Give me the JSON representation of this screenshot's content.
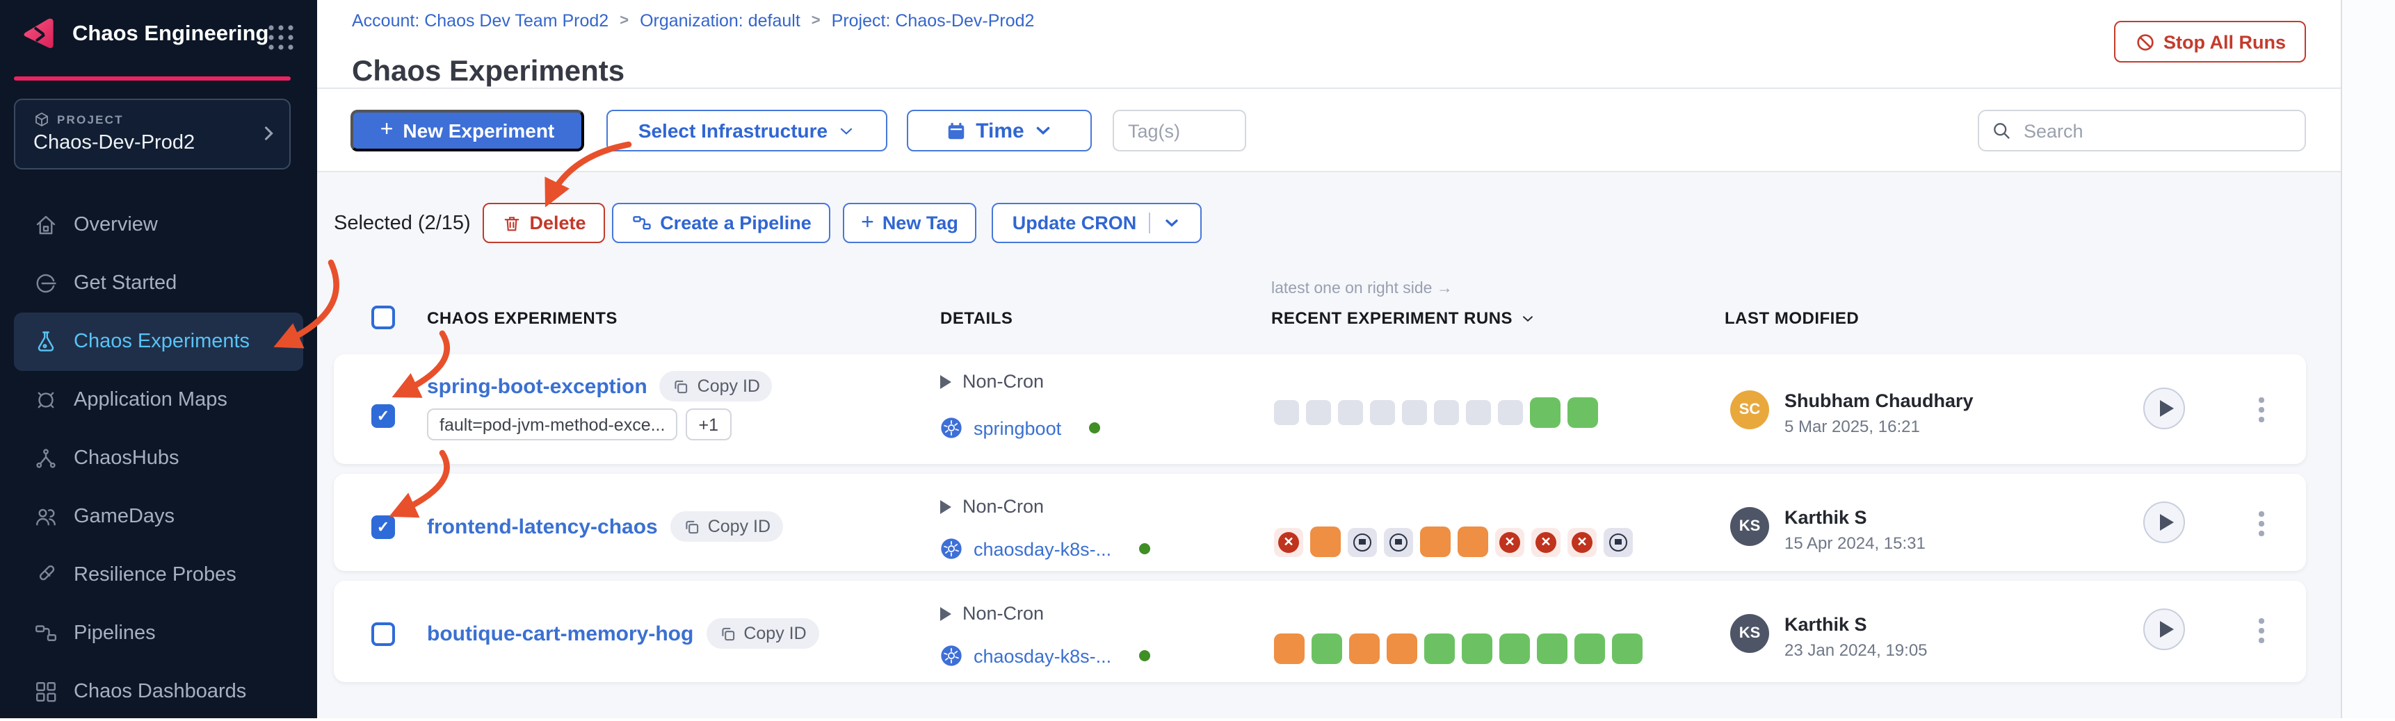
{
  "sidebar": {
    "title": "Chaos Engineering",
    "logo_icon": "chaos-logo-icon",
    "apps_icon": "app-grid-icon",
    "project": {
      "label": "PROJECT",
      "name": "Chaos-Dev-Prod2"
    },
    "items": [
      {
        "label": "Overview",
        "icon": "home-icon",
        "active": false
      },
      {
        "label": "Get Started",
        "icon": "get-started-icon",
        "active": false
      },
      {
        "label": "Chaos Experiments",
        "icon": "flask-icon",
        "active": true
      },
      {
        "label": "Application Maps",
        "icon": "target-icon",
        "active": false
      },
      {
        "label": "ChaosHubs",
        "icon": "hub-icon",
        "active": false
      },
      {
        "label": "GameDays",
        "icon": "people-icon",
        "active": false
      },
      {
        "label": "Resilience Probes",
        "icon": "probe-icon",
        "active": false
      },
      {
        "label": "Pipelines",
        "icon": "pipeline-icon",
        "active": false
      },
      {
        "label": "Chaos Dashboards",
        "icon": "dashboard-icon",
        "active": false
      }
    ]
  },
  "header": {
    "breadcrumbs": [
      "Account: Chaos Dev Team Prod2",
      "Organization: default",
      "Project: Chaos-Dev-Prod2"
    ],
    "breadcrumb_separator": ">",
    "title": "Chaos Experiments",
    "stop_all_runs": "Stop All Runs"
  },
  "toolbar": {
    "plus": "+",
    "new_experiment": "New Experiment",
    "select_infrastructure": "Select Infrastructure",
    "time": "Time",
    "tags_placeholder": "Tag(s)",
    "search_placeholder": "Search"
  },
  "selection": {
    "selected_text": "Selected (2/15)",
    "plus": "+",
    "delete": "Delete",
    "create_pipeline": "Create a Pipeline",
    "new_tag": "New Tag",
    "update_cron": "Update CRON"
  },
  "table": {
    "runs_note": "latest one on right side →",
    "col_experiments": "CHAOS EXPERIMENTS",
    "col_details": "DETAILS",
    "col_runs": "RECENT EXPERIMENT RUNS",
    "col_modified": "LAST MODIFIED",
    "rows": [
      {
        "name": "spring-boot-exception",
        "copy_id": "Copy ID",
        "checked": true,
        "tags": {
          "tag1": "fault=pod-jvm-method-exce...",
          "more": "+1"
        },
        "schedule": "Non-Cron",
        "infra": "springboot",
        "runs": [
          "gray",
          "gray",
          "gray",
          "gray",
          "gray",
          "gray",
          "gray",
          "gray",
          "green",
          "green"
        ],
        "modified_by": "Shubham Chaudhary",
        "initials": "SC",
        "avatar_color": "#e9a83c",
        "modified_date": "5 Mar 2025, 16:21"
      },
      {
        "name": "frontend-latency-chaos",
        "copy_id": "Copy ID",
        "checked": true,
        "schedule": "Non-Cron",
        "infra": "chaosday-k8s-...",
        "runs": [
          "redx",
          "orange",
          "stop",
          "stop",
          "orange",
          "orange",
          "redx",
          "redx",
          "redx",
          "stop"
        ],
        "modified_by": "Karthik S",
        "initials": "KS",
        "avatar_color": "#4e5566",
        "modified_date": "15 Apr 2024, 15:31"
      },
      {
        "name": "boutique-cart-memory-hog",
        "copy_id": "Copy ID",
        "checked": false,
        "schedule": "Non-Cron",
        "infra": "chaosday-k8s-...",
        "runs": [
          "orange",
          "green",
          "orange",
          "orange",
          "green",
          "green",
          "green",
          "green",
          "green",
          "green"
        ],
        "modified_by": "Karthik S",
        "initials": "KS",
        "avatar_color": "#4e5566",
        "modified_date": "23 Jan 2024, 19:05"
      }
    ]
  },
  "colors": {
    "sidebar_bg": "#0c1626",
    "accent_pink": "#ec2360",
    "primary_blue": "#3d6fd7",
    "link_blue": "#3a70d2",
    "active_nav_blue": "#57c3f5",
    "danger_red": "#c43b2c",
    "annotation_red": "#e8502c",
    "run_green": "#6cc262",
    "run_orange": "#ee8f43",
    "run_gray": "#dfe2ea",
    "online_dot_green": "#3f8e26"
  }
}
